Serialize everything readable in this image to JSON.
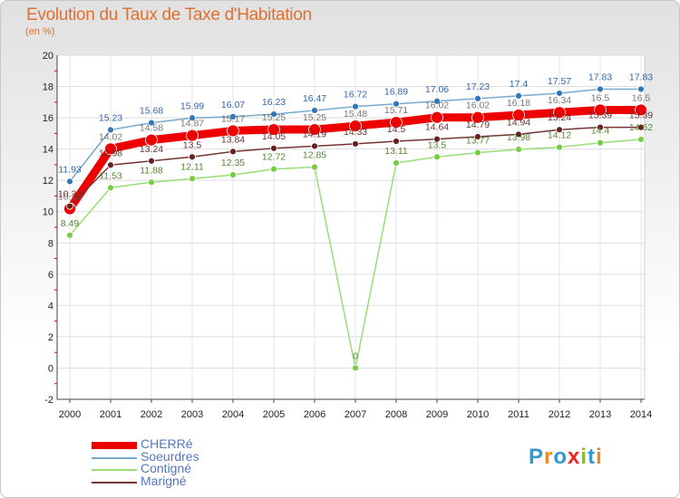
{
  "header": {
    "title": "Evolution du Taux de Taxe d'Habitation",
    "subtitle": "(en %)"
  },
  "logo": {
    "text": "Proxiti",
    "colors": [
      "#3399cc",
      "#ee8822",
      "#3399cc",
      "#ee2222",
      "#88bb33",
      "#3399cc",
      "#ee8822"
    ]
  },
  "chart_data": {
    "type": "line",
    "title": "Evolution du Taux de Taxe d'Habitation",
    "ylabel": "(en %)",
    "xlabel": "",
    "ylim": [
      -2,
      20
    ],
    "yticks": [
      -2,
      0,
      2,
      4,
      6,
      8,
      10,
      12,
      14,
      16,
      18,
      20
    ],
    "x": [
      "2000",
      "2001",
      "2002",
      "2003",
      "2004",
      "2005",
      "2006",
      "2007",
      "2008",
      "2009",
      "2010",
      "2011",
      "2012",
      "2013",
      "2014"
    ],
    "series": [
      {
        "name": "Soeurdres",
        "color": "#77aacc",
        "marker_color": "#3377bb",
        "values": [
          11.93,
          15.23,
          15.68,
          15.99,
          16.07,
          16.23,
          16.47,
          16.72,
          16.89,
          17.06,
          17.23,
          17.4,
          17.57,
          17.83,
          17.83
        ],
        "labels": [
          "11.93",
          "15.23",
          "15.68",
          "15.99",
          "16.07",
          "16.23",
          "16.47",
          "16.72",
          "16.89",
          "17.06",
          "17.23",
          "17.4",
          "17.57",
          "17.83",
          "17.83"
        ]
      },
      {
        "name": "CHERRé",
        "color": "#ee0000",
        "marker_color": "#ee0000",
        "values": [
          10.18,
          14.02,
          14.58,
          14.87,
          15.17,
          15.25,
          15.25,
          15.48,
          15.71,
          16.02,
          16.02,
          16.18,
          16.34,
          16.5,
          16.5
        ],
        "labels": [
          "10.18",
          "14.02",
          "14.58",
          "14.87",
          "15.17",
          "15.25",
          "15.25",
          "15.48",
          "15.71",
          "16.02",
          "16.02",
          "16.18",
          "16.34",
          "16.5",
          "16.5"
        ]
      },
      {
        "name": "Marigné",
        "color": "#773333",
        "marker_color": "#662222",
        "values": [
          10.35,
          12.98,
          13.24,
          13.5,
          13.84,
          14.05,
          14.19,
          14.33,
          14.5,
          14.64,
          14.79,
          14.94,
          15.24,
          15.39,
          15.39
        ],
        "labels": [
          "10.35",
          "12.98",
          "13.24",
          "13.5",
          "13.84",
          "14.05",
          "14.19",
          "14.33",
          "14.5",
          "14.64",
          "14.79",
          "14.94",
          "15.24",
          "15.39",
          "15.39"
        ]
      },
      {
        "name": "Contigné",
        "color": "#99dd77",
        "marker_color": "#77cc44",
        "values": [
          8.49,
          11.53,
          11.88,
          12.11,
          12.35,
          12.72,
          12.85,
          0,
          13.11,
          13.5,
          13.77,
          13.98,
          14.12,
          14.4,
          14.62
        ],
        "labels": [
          "8.49",
          "11.53",
          "11.88",
          "12.11",
          "12.35",
          "12.72",
          "12.85",
          "0",
          "13.11",
          "13.5",
          "13.77",
          "13.98",
          "14.12",
          "14.4",
          "14.62"
        ]
      }
    ],
    "legend": {
      "position": "bottom-left",
      "order": [
        "CHERRé",
        "Soeurdres",
        "Contigné",
        "Marigné"
      ]
    }
  }
}
